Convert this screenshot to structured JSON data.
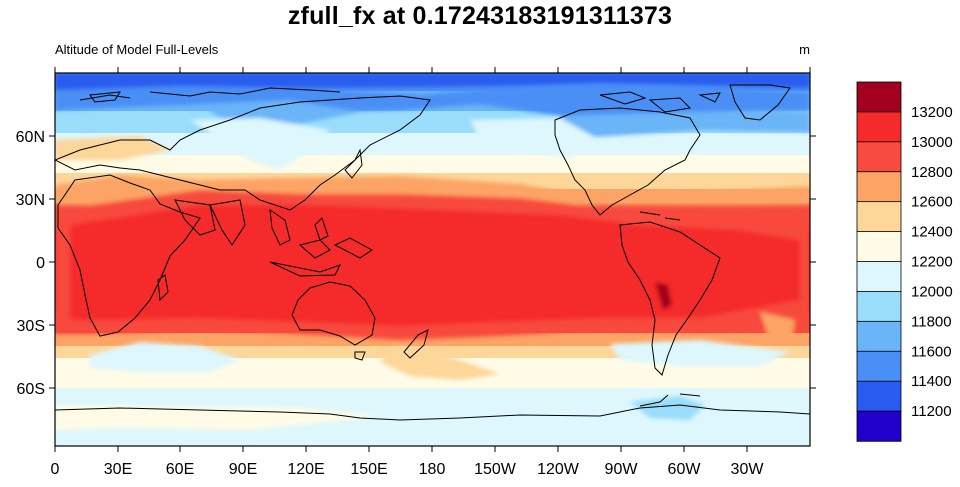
{
  "title": "zfull_fx at 0.17243183191311373",
  "subtitle_left": "Altitude of Model Full-Levels",
  "units": "m",
  "lon_labels": [
    "0",
    "30E",
    "60E",
    "90E",
    "120E",
    "150E",
    "180",
    "150W",
    "120W",
    "90W",
    "60W",
    "30W"
  ],
  "lat_labels": [
    "60N",
    "30N",
    "0",
    "30S",
    "60S"
  ],
  "colorbar": {
    "colors": [
      "#2200cc",
      "#2a5bf0",
      "#4a8ff5",
      "#6ab4f8",
      "#99ddfa",
      "#ddf7fd",
      "#fffbe6",
      "#fdd69a",
      "#fca465",
      "#f84a3e",
      "#f52a2a",
      "#a2001e"
    ],
    "labels": [
      "13200",
      "13000",
      "12800",
      "12600",
      "12400",
      "12200",
      "12000",
      "11800",
      "11600",
      "11400",
      "11200"
    ]
  },
  "map": {
    "projection": "cylindrical equidistant",
    "center_lon": 180,
    "field_range_m": [
      11200,
      13200
    ],
    "contour_interval_m": 200
  }
}
